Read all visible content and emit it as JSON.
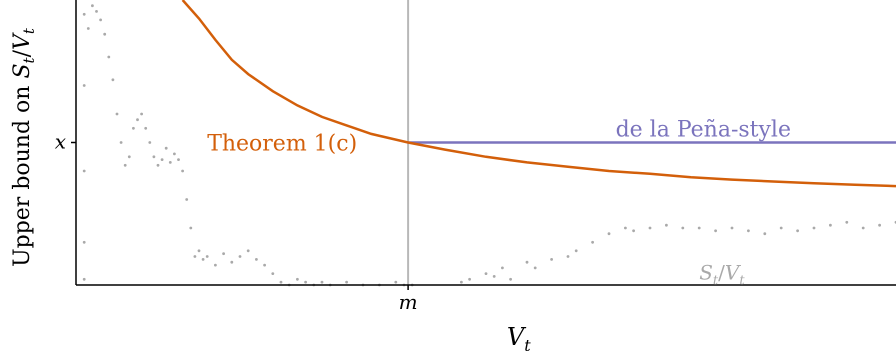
{
  "chart_data": {
    "type": "line",
    "title": "",
    "xlabel": "V_t",
    "ylabel": "Upper bound on S_t / V_t",
    "x_tick_labels": [
      "m"
    ],
    "y_tick_labels": [
      "x"
    ],
    "x_domain": [
      0,
      1
    ],
    "y_domain": [
      0,
      1
    ],
    "x_marker": 0.405,
    "y_marker": 0.5,
    "grid": false,
    "colors": {
      "theorem": "#d35f0a",
      "pena": "#7b74bd",
      "walk": "#a9a9a9",
      "marker_line": "#b8b8b8",
      "axes": "#000000"
    },
    "series": [
      {
        "name": "Theorem 1(c)",
        "kind": "curve",
        "x": [
          0.13,
          0.15,
          0.17,
          0.19,
          0.21,
          0.24,
          0.27,
          0.3,
          0.33,
          0.36,
          0.405,
          0.45,
          0.5,
          0.55,
          0.6,
          0.65,
          0.7,
          0.75,
          0.8,
          0.85,
          0.9,
          0.95,
          1.0
        ],
        "y": [
          1.0,
          0.935,
          0.86,
          0.79,
          0.74,
          0.68,
          0.63,
          0.59,
          0.56,
          0.53,
          0.5,
          0.475,
          0.45,
          0.43,
          0.415,
          0.4,
          0.39,
          0.378,
          0.37,
          0.363,
          0.357,
          0.352,
          0.347
        ]
      },
      {
        "name": "de la Peña-style",
        "kind": "line",
        "x": [
          0.405,
          1.0
        ],
        "y": [
          0.5,
          0.5
        ]
      },
      {
        "name": "S_t / V_t",
        "kind": "dots",
        "x": [
          0.01,
          0.01,
          0.01,
          0.01,
          0.01,
          0.015,
          0.02,
          0.025,
          0.03,
          0.035,
          0.04,
          0.045,
          0.05,
          0.055,
          0.06,
          0.065,
          0.07,
          0.075,
          0.08,
          0.085,
          0.09,
          0.095,
          0.1,
          0.105,
          0.11,
          0.115,
          0.12,
          0.125,
          0.13,
          0.135,
          0.14,
          0.145,
          0.15,
          0.155,
          0.16,
          0.17,
          0.18,
          0.19,
          0.2,
          0.21,
          0.22,
          0.23,
          0.24,
          0.25,
          0.26,
          0.27,
          0.28,
          0.29,
          0.3,
          0.31,
          0.33,
          0.35,
          0.37,
          0.39,
          0.4,
          0.41,
          0.47,
          0.48,
          0.5,
          0.51,
          0.52,
          0.53,
          0.55,
          0.56,
          0.58,
          0.6,
          0.61,
          0.63,
          0.65,
          0.67,
          0.68,
          0.7,
          0.72,
          0.74,
          0.76,
          0.78,
          0.8,
          0.82,
          0.84,
          0.86,
          0.88,
          0.9,
          0.92,
          0.94,
          0.96,
          0.98,
          1.0
        ],
        "y": [
          0.95,
          0.7,
          0.4,
          0.15,
          0.02,
          0.9,
          0.98,
          0.96,
          0.93,
          0.88,
          0.8,
          0.72,
          0.6,
          0.5,
          0.42,
          0.45,
          0.55,
          0.58,
          0.6,
          0.55,
          0.5,
          0.45,
          0.42,
          0.44,
          0.48,
          0.43,
          0.46,
          0.44,
          0.4,
          0.3,
          0.2,
          0.1,
          0.12,
          0.09,
          0.1,
          0.07,
          0.11,
          0.08,
          0.1,
          0.12,
          0.09,
          0.07,
          0.04,
          0.01,
          0.0,
          0.02,
          0.01,
          0.0,
          0.01,
          0.0,
          0.01,
          0.0,
          0.0,
          0.01,
          0.0,
          0.0,
          0.01,
          0.02,
          0.04,
          0.03,
          0.06,
          0.02,
          0.08,
          0.06,
          0.09,
          0.1,
          0.12,
          0.15,
          0.18,
          0.2,
          0.19,
          0.2,
          0.21,
          0.2,
          0.2,
          0.19,
          0.2,
          0.19,
          0.18,
          0.2,
          0.19,
          0.2,
          0.21,
          0.22,
          0.2,
          0.21,
          0.22
        ]
      }
    ],
    "annotations": {
      "theorem_label": "Theorem 1(c)",
      "pena_label": "de la Peña-style",
      "walk_label_main": "S",
      "walk_label_sub": "t",
      "walk_label_sep": "/",
      "walk_label_main2": "V",
      "walk_label_sub2": "t"
    },
    "axis_text": {
      "ylabel_main": "Upper bound on ",
      "ylabel_s": "S",
      "ylabel_t1": "t",
      "ylabel_slash": "/",
      "ylabel_v": "V",
      "ylabel_t2": "t",
      "xlabel_v": "V",
      "xlabel_t": "t",
      "xtick": "m",
      "ytick": "x"
    }
  }
}
